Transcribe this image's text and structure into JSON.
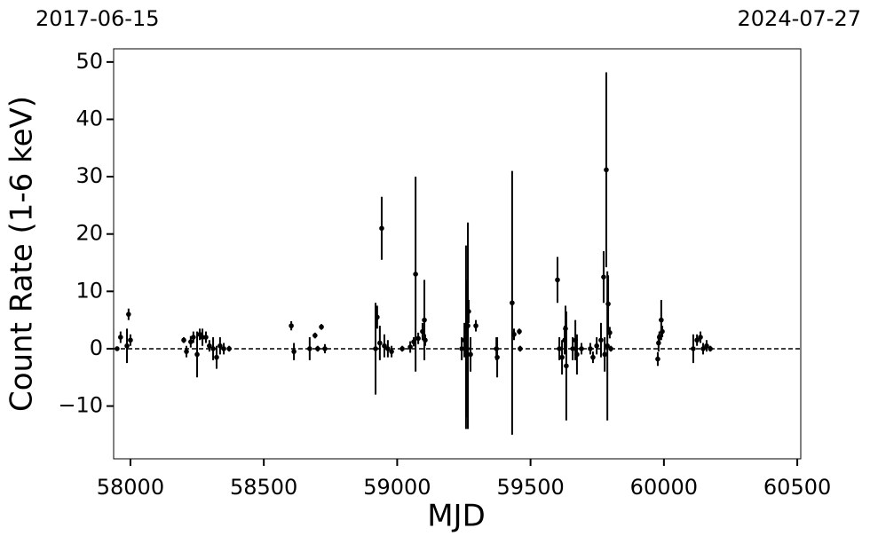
{
  "chart_data": {
    "type": "errorbar",
    "xlabel": "MJD",
    "ylabel": "Count Rate (1-6 keV)",
    "annotations": [
      "2017-06-15",
      "2024-07-27"
    ],
    "xlim": [
      57937,
      60513
    ],
    "ylim": [
      -19.2,
      52.3
    ],
    "xticks": [
      58000,
      58500,
      59000,
      59500,
      60000,
      60500
    ],
    "yticks": [
      {
        "value": -10,
        "label": "−10"
      },
      0,
      10,
      20,
      30,
      40,
      50
    ],
    "hline": 0,
    "color": "#000000",
    "x": [
      57950,
      57963,
      57987,
      57993,
      58000,
      58200,
      58210,
      58226,
      58236,
      58250,
      58260,
      58270,
      58283,
      58296,
      58310,
      58323,
      58336,
      58350,
      58370,
      58603,
      58613,
      58672,
      58692,
      58702,
      58716,
      58729,
      58919,
      58925,
      58935,
      58942,
      58952,
      58965,
      58979,
      59019,
      59049,
      59062,
      59069,
      59079,
      59095,
      59102,
      59105,
      59242,
      59252,
      59258,
      59262,
      59265,
      59268,
      59275,
      59295,
      59372,
      59375,
      59431,
      59438,
      59458,
      59461,
      59601,
      59608,
      59618,
      59628,
      59631,
      59634,
      59658,
      59668,
      59674,
      59691,
      59724,
      59734,
      59748,
      59764,
      59774,
      59778,
      59784,
      59788,
      59791,
      59797,
      59801,
      59977,
      59980,
      59983,
      59990,
      59994,
      60110,
      60124,
      60137,
      60147,
      60160,
      60174
    ],
    "values": [
      0,
      2,
      0.5,
      6,
      1.5,
      1.5,
      -0.5,
      1.2,
      2,
      -1,
      2.5,
      2,
      2,
      0.5,
      0,
      -1.5,
      0.5,
      0,
      0,
      4,
      -0.5,
      0,
      2.3,
      0,
      3.8,
      0,
      0,
      5.5,
      1,
      21,
      0.5,
      0,
      -0.5,
      0,
      0.3,
      1.2,
      13,
      1.8,
      3,
      5,
      1.5,
      0,
      1.5,
      2,
      0,
      4,
      6.5,
      -1,
      4,
      0,
      -1.5,
      8,
      2.5,
      3,
      0,
      12,
      0,
      -1.5,
      1.5,
      3.5,
      -3,
      0,
      1.5,
      -1,
      0,
      0,
      -1.5,
      0.5,
      1.5,
      12.5,
      -1,
      31.2,
      0.5,
      7.8,
      2.8,
      0,
      -1.8,
      1,
      2,
      5,
      3,
      0,
      1.5,
      2,
      0,
      0.5,
      0
    ],
    "errors": [
      0.3,
      1,
      3,
      1,
      1,
      0.5,
      1,
      1,
      1,
      4,
      1,
      1.5,
      1,
      1,
      2,
      2,
      1.5,
      1,
      0.5,
      0.8,
      1.5,
      2,
      0.5,
      0.5,
      0.5,
      0.8,
      8,
      2,
      3,
      5.5,
      2,
      1.5,
      1,
      0.5,
      1,
      0.8,
      17,
      1,
      1.5,
      7,
      1,
      2,
      3,
      16,
      12,
      18,
      2,
      3,
      1,
      2,
      3.5,
      23,
      1,
      0.5,
      0.5,
      4,
      2,
      3,
      2.5,
      4,
      9.5,
      2,
      3.5,
      3.5,
      1,
      1,
      1,
      1.5,
      3,
      4.5,
      3,
      17,
      13,
      5,
      1,
      0.5,
      1.2,
      1.5,
      1,
      3.5,
      1,
      2.5,
      1,
      1,
      1,
      1,
      0.5
    ]
  }
}
